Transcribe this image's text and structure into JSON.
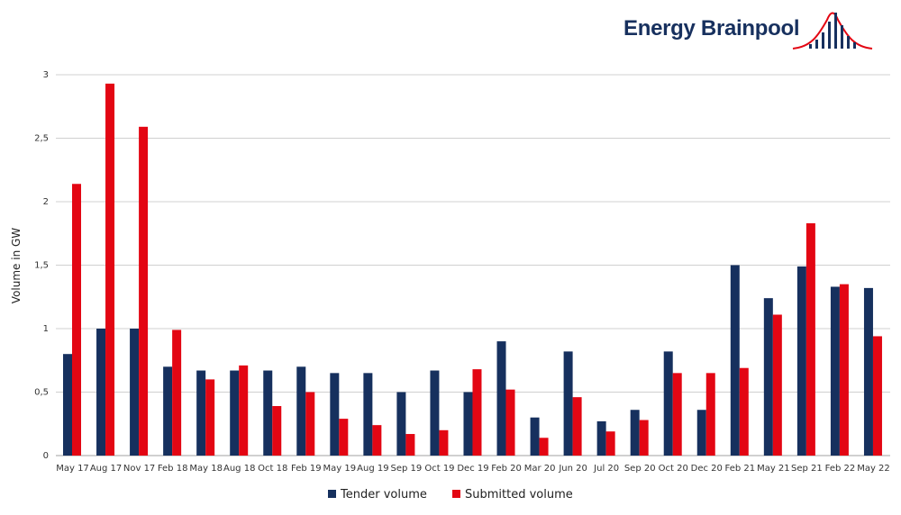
{
  "brand": {
    "name": "Energy Brainpool",
    "logo_icon": "bell-curve-bars-icon"
  },
  "colors": {
    "tender": "#16305e",
    "submitted": "#e30613",
    "grid": "#d0d0d0",
    "brand": "#17305e"
  },
  "chart_data": {
    "type": "bar",
    "title": "",
    "xlabel": "",
    "ylabel": "Volume in GW",
    "ylim": [
      0,
      3
    ],
    "yticks": [
      0,
      0.5,
      1,
      1.5,
      2,
      2.5,
      3
    ],
    "ytick_labels": [
      "0",
      "0,5",
      "1",
      "1,5",
      "2",
      "2,5",
      "3"
    ],
    "grid": true,
    "legend": "bottom-center",
    "categories": [
      "May 17",
      "Aug 17",
      "Nov 17",
      "Feb 18",
      "May 18",
      "Aug 18",
      "Oct 18",
      "Feb 19",
      "May 19",
      "Aug 19",
      "Sep 19",
      "Oct 19",
      "Dec 19",
      "Feb 20",
      "Mar 20",
      "Jun 20",
      "Jul 20",
      "Sep 20",
      "Oct 20",
      "Dec 20",
      "Feb 21",
      "May 21",
      "Sep 21",
      "Feb 22",
      "May 22"
    ],
    "series": [
      {
        "name": "Tender volume",
        "color": "#16305e",
        "values": [
          0.8,
          1.0,
          1.0,
          0.7,
          0.67,
          0.67,
          0.67,
          0.7,
          0.65,
          0.65,
          0.5,
          0.67,
          0.5,
          0.9,
          0.3,
          0.82,
          0.27,
          0.36,
          0.82,
          0.36,
          1.5,
          1.24,
          1.49,
          1.33,
          1.32
        ]
      },
      {
        "name": "Submitted volume",
        "color": "#e30613",
        "values": [
          2.14,
          2.93,
          2.59,
          0.99,
          0.6,
          0.71,
          0.39,
          0.5,
          0.29,
          0.24,
          0.17,
          0.2,
          0.68,
          0.52,
          0.14,
          0.46,
          0.19,
          0.28,
          0.65,
          0.65,
          0.69,
          1.11,
          1.83,
          1.35,
          0.94
        ]
      }
    ]
  }
}
